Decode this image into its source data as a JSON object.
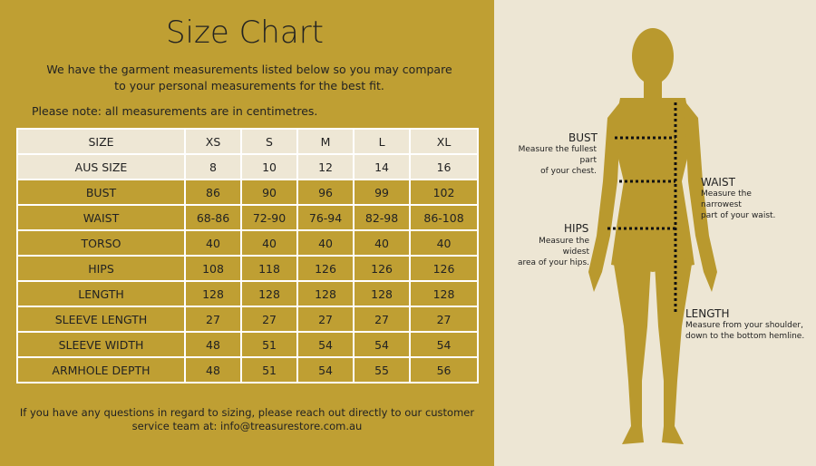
{
  "title": "Size Chart",
  "intro": [
    "We have the garment measurements listed below so you may compare",
    "to your personal measurements for the best fit."
  ],
  "note": "Please note: all measurements are in centimetres.",
  "table": {
    "header": [
      "SIZE",
      "XS",
      "S",
      "M",
      "L",
      "XL"
    ],
    "rows": [
      [
        "AUS SIZE",
        "8",
        "10",
        "12",
        "14",
        "16"
      ],
      [
        "BUST",
        "86",
        "90",
        "96",
        "99",
        "102"
      ],
      [
        "WAIST",
        "68-86",
        "72-90",
        "76-94",
        "82-98",
        "86-108"
      ],
      [
        "TORSO",
        "40",
        "40",
        "40",
        "40",
        "40"
      ],
      [
        "HIPS",
        "108",
        "118",
        "126",
        "126",
        "126"
      ],
      [
        "LENGTH",
        "128",
        "128",
        "128",
        "128",
        "128"
      ],
      [
        "SLEEVE LENGTH",
        "27",
        "27",
        "27",
        "27",
        "27"
      ],
      [
        "SLEEVE WIDTH",
        "48",
        "51",
        "54",
        "54",
        "54"
      ],
      [
        "ARMHOLE DEPTH",
        "48",
        "51",
        "54",
        "55",
        "56"
      ]
    ]
  },
  "footer": [
    "If you have any questions in regard to sizing, please reach out directly to our customer",
    "service team at: info@treasurestore.com.au"
  ],
  "figure": {
    "bust": {
      "label": "BUST",
      "lines": [
        "Measure the fullest",
        "part",
        "of your chest."
      ]
    },
    "waist": {
      "label": "WAIST",
      "lines": [
        "Measure the",
        "narrowest",
        "part of your waist."
      ]
    },
    "hips": {
      "label": "HIPS",
      "lines": [
        "Measure the",
        "widest",
        "area of your hips."
      ]
    },
    "length": {
      "label": "LENGTH",
      "lines": [
        "Measure from your shoulder,",
        "down to the bottom hemline."
      ]
    }
  }
}
